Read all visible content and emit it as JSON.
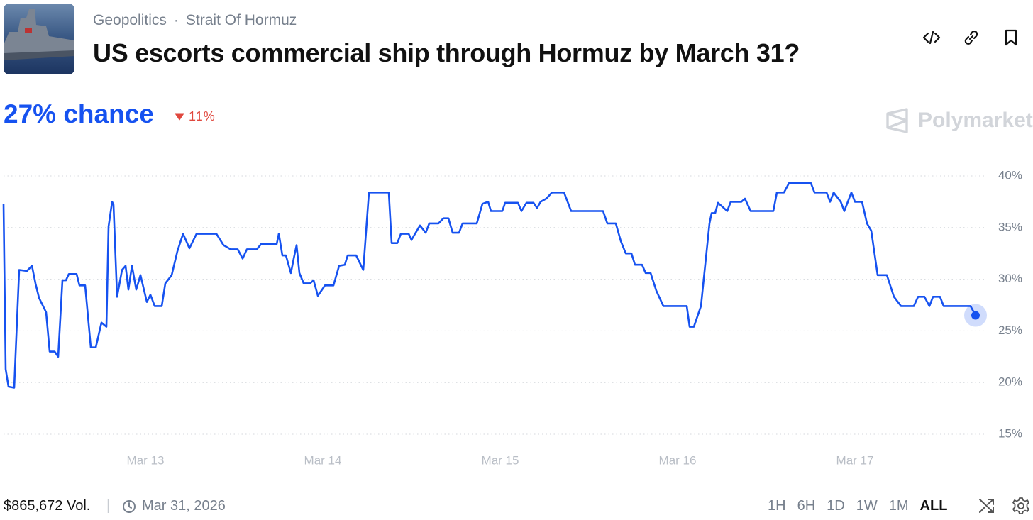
{
  "header": {
    "breadcrumb": [
      "Geopolitics",
      "Strait Of Hormuz"
    ],
    "title": "US escorts commercial ship through Hormuz by March 31?"
  },
  "summary": {
    "headline": "27% chance",
    "change": "11%",
    "brand": "Polymarket"
  },
  "chart_data": {
    "type": "line",
    "color": "#1652f0",
    "grid": true,
    "xlim": [
      12.2,
      17.74
    ],
    "xticks": [
      {
        "value": 13,
        "label": "Mar 13"
      },
      {
        "value": 14,
        "label": "Mar 14"
      },
      {
        "value": 15,
        "label": "Mar 15"
      },
      {
        "value": 16,
        "label": "Mar 16"
      },
      {
        "value": 17,
        "label": "Mar 17"
      }
    ],
    "ylim": [
      15,
      40
    ],
    "yticks": [
      {
        "value": 40,
        "label": "40%"
      },
      {
        "value": 35,
        "label": "35%"
      },
      {
        "value": 30,
        "label": "30%"
      },
      {
        "value": 25,
        "label": "25%"
      },
      {
        "value": 20,
        "label": "20%"
      },
      {
        "value": 15,
        "label": "15%"
      }
    ],
    "x": [
      12.2,
      12.212,
      12.228,
      12.26,
      12.288,
      12.332,
      12.36,
      12.38,
      12.4,
      12.44,
      12.46,
      12.488,
      12.508,
      12.532,
      12.552,
      12.568,
      12.612,
      12.628,
      12.66,
      12.692,
      12.72,
      12.752,
      12.78,
      12.792,
      12.812,
      12.82,
      12.84,
      12.868,
      12.888,
      12.904,
      12.924,
      12.948,
      12.972,
      13.008,
      13.028,
      13.052,
      13.092,
      13.112,
      13.148,
      13.18,
      13.212,
      13.248,
      13.288,
      13.4,
      13.44,
      13.48,
      13.52,
      13.548,
      13.572,
      13.628,
      13.652,
      13.74,
      13.752,
      13.772,
      13.792,
      13.82,
      13.836,
      13.852,
      13.868,
      13.892,
      13.928,
      13.948,
      13.972,
      14.012,
      14.06,
      14.092,
      14.124,
      14.14,
      14.188,
      14.228,
      14.26,
      14.372,
      14.388,
      14.42,
      14.44,
      14.484,
      14.5,
      14.52,
      14.548,
      14.58,
      14.6,
      14.652,
      14.68,
      14.708,
      14.732,
      14.768,
      14.788,
      14.868,
      14.9,
      14.932,
      14.948,
      15.012,
      15.028,
      15.1,
      15.12,
      15.148,
      15.188,
      15.208,
      15.228,
      15.26,
      15.292,
      15.36,
      15.4,
      15.58,
      15.604,
      15.652,
      15.68,
      15.708,
      15.74,
      15.76,
      15.8,
      15.82,
      15.848,
      15.88,
      15.92,
      16.052,
      16.068,
      16.092,
      16.132,
      16.18,
      16.192,
      16.212,
      16.228,
      16.28,
      16.3,
      16.36,
      16.38,
      16.412,
      16.54,
      16.56,
      16.6,
      16.628,
      16.752,
      16.772,
      16.84,
      16.86,
      16.88,
      16.92,
      16.94,
      16.98,
      17.0,
      17.04,
      17.068,
      17.092,
      17.128,
      17.18,
      17.22,
      17.26,
      17.332,
      17.356,
      17.392,
      17.42,
      17.44,
      17.48,
      17.5,
      17.652,
      17.68
    ],
    "values": [
      37.3,
      21.3,
      19.6,
      19.5,
      30.9,
      30.8,
      31.3,
      29.6,
      28.2,
      26.8,
      23.0,
      23.0,
      22.5,
      29.9,
      29.9,
      30.5,
      30.5,
      29.4,
      29.4,
      23.4,
      23.4,
      25.8,
      25.4,
      35.1,
      37.5,
      37.2,
      28.3,
      30.9,
      31.3,
      29.0,
      31.3,
      29.0,
      30.4,
      27.8,
      28.5,
      27.4,
      27.4,
      29.6,
      30.4,
      32.7,
      34.4,
      33.0,
      34.4,
      34.4,
      33.3,
      32.9,
      32.9,
      32.0,
      32.9,
      32.9,
      33.4,
      33.4,
      34.4,
      32.3,
      32.3,
      30.6,
      32.0,
      33.3,
      30.6,
      29.6,
      29.6,
      29.9,
      28.4,
      29.4,
      29.4,
      31.3,
      31.4,
      32.3,
      32.3,
      30.9,
      38.4,
      38.4,
      33.5,
      33.5,
      34.4,
      34.4,
      33.8,
      34.4,
      35.2,
      34.5,
      35.4,
      35.4,
      35.9,
      35.9,
      34.5,
      34.5,
      35.4,
      35.4,
      37.3,
      37.5,
      36.6,
      36.6,
      37.4,
      37.4,
      36.6,
      37.4,
      37.4,
      36.9,
      37.5,
      37.8,
      38.4,
      38.4,
      36.6,
      36.6,
      35.4,
      35.4,
      33.7,
      32.5,
      32.5,
      31.4,
      31.4,
      30.6,
      30.6,
      28.9,
      27.4,
      27.4,
      25.4,
      25.4,
      27.4,
      35.4,
      36.4,
      36.4,
      37.4,
      36.6,
      37.5,
      37.5,
      37.8,
      36.6,
      36.6,
      38.4,
      38.4,
      39.3,
      39.3,
      38.4,
      38.4,
      37.5,
      38.4,
      37.5,
      36.6,
      38.4,
      37.5,
      37.5,
      35.4,
      34.7,
      30.4,
      30.4,
      28.3,
      27.4,
      27.4,
      28.3,
      28.3,
      27.4,
      28.3,
      28.3,
      27.4,
      27.4,
      26.5
    ]
  },
  "footer": {
    "volume": "$865,672 Vol.",
    "end_date": "Mar 31, 2026",
    "ranges": [
      "1H",
      "6H",
      "1D",
      "1W",
      "1M",
      "ALL"
    ],
    "selected_range": "ALL"
  }
}
